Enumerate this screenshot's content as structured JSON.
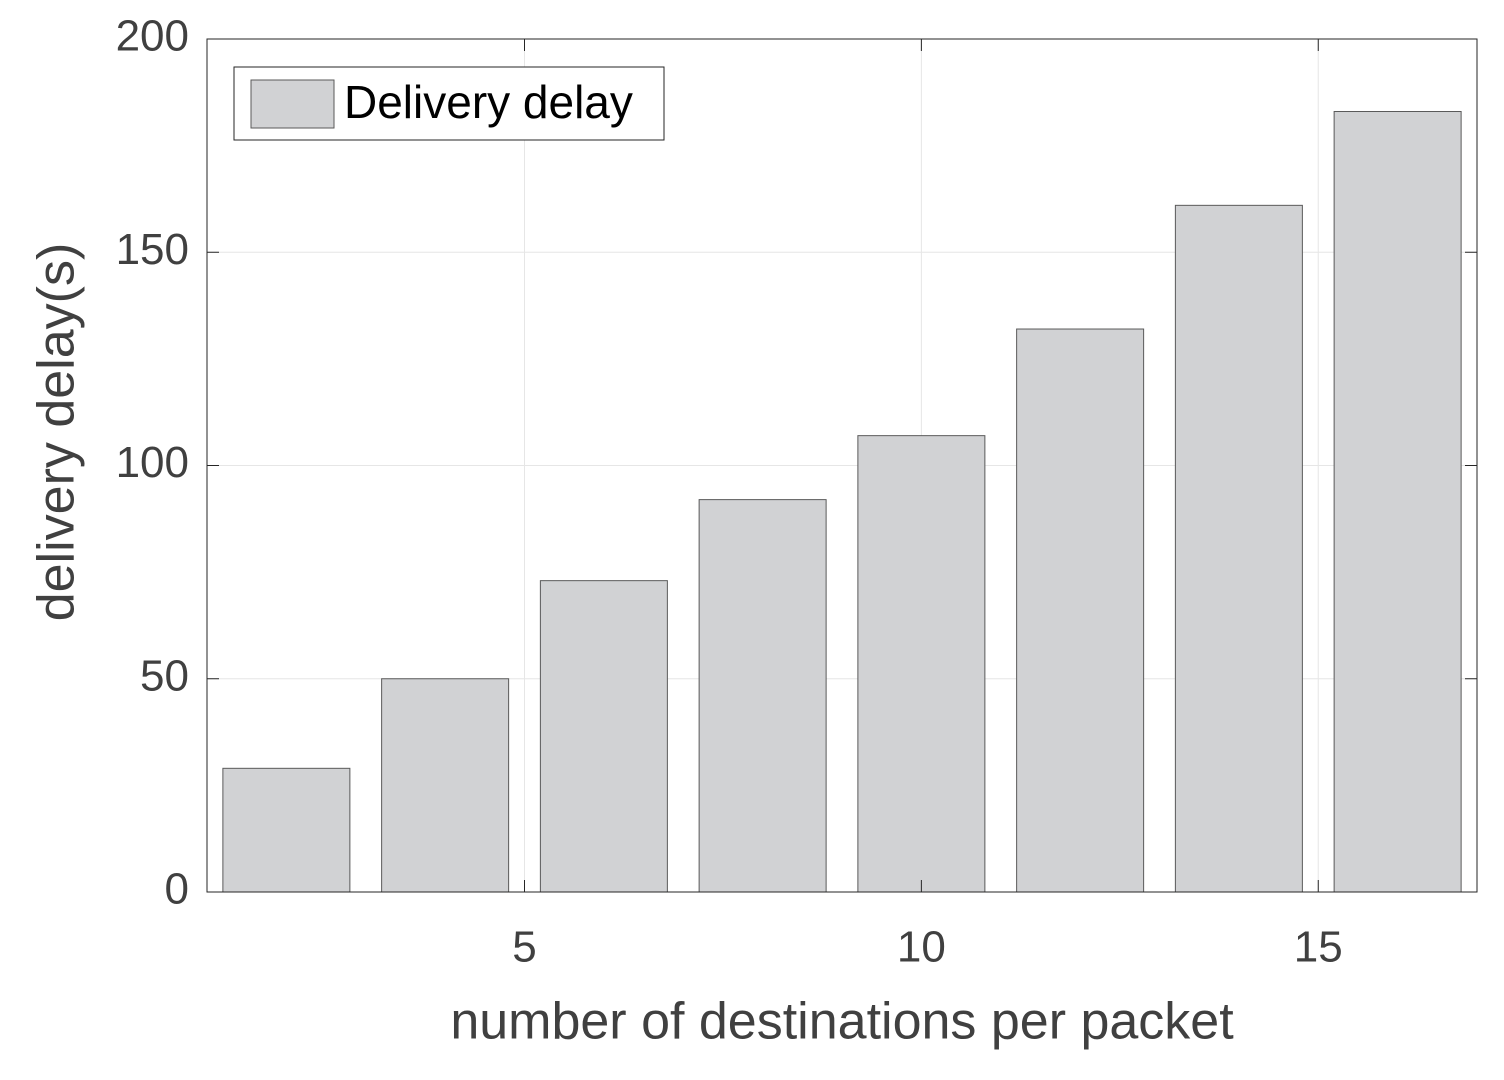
{
  "chart_data": {
    "type": "bar",
    "x": [
      2,
      4,
      6,
      8,
      10,
      12,
      14,
      16
    ],
    "series": [
      {
        "name": "Delivery delay",
        "color": "#d1d2d4",
        "values": [
          29,
          50,
          73,
          92,
          107,
          132,
          161,
          183
        ]
      }
    ],
    "x_label": "number of destinations per packet",
    "y_label": "delivery delay(s)",
    "xlim": [
      1,
      17
    ],
    "xticks": [
      5,
      10,
      15
    ],
    "ylim": [
      0,
      200
    ],
    "yticks": [
      0,
      50,
      100,
      150,
      200
    ],
    "grid": true,
    "legend_position": "upper left"
  }
}
